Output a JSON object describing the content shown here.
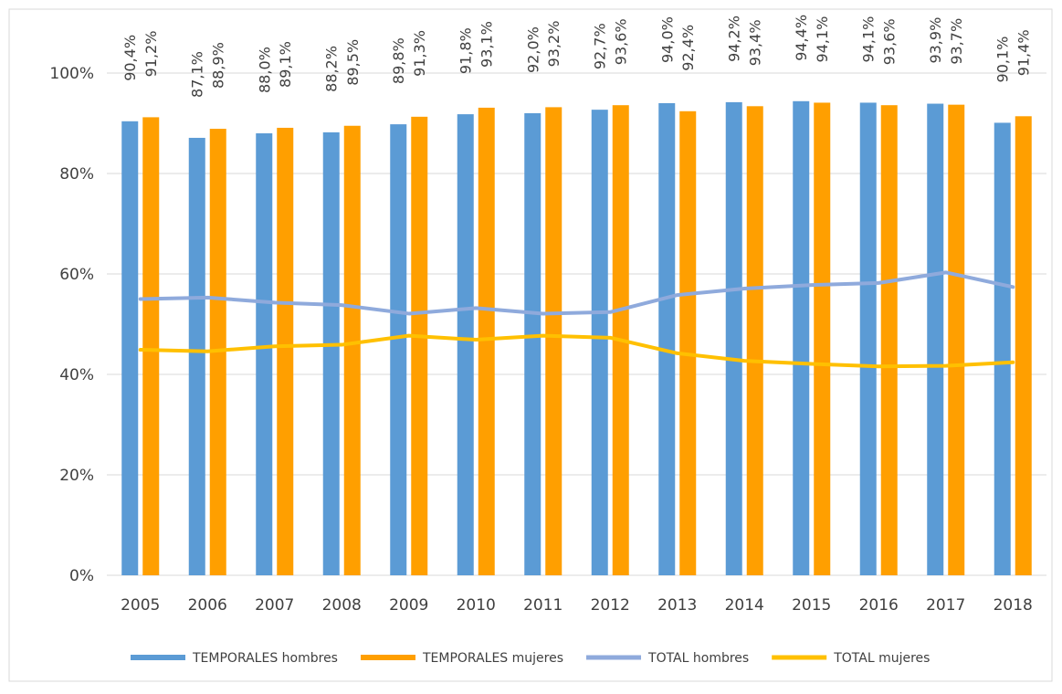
{
  "chart_data": {
    "type": "bar",
    "categories": [
      "2005",
      "2006",
      "2007",
      "2008",
      "2009",
      "2010",
      "2011",
      "2012",
      "2013",
      "2014",
      "2015",
      "2016",
      "2017",
      "2018"
    ],
    "series": [
      {
        "name": "TEMPORALES hombres",
        "type": "bar",
        "color": "#5b9bd5",
        "values": [
          90.4,
          87.1,
          88.0,
          88.2,
          89.8,
          91.8,
          92.0,
          92.7,
          94.0,
          94.2,
          94.4,
          94.1,
          93.9,
          90.1
        ],
        "value_labels": [
          "90,4%",
          "87,1%",
          "88,0%",
          "88,2%",
          "89,8%",
          "91,8%",
          "92,0%",
          "92,7%",
          "94,0%",
          "94,2%",
          "94,4%",
          "94,1%",
          "93,9%",
          "90,1%"
        ]
      },
      {
        "name": "TEMPORALES mujeres",
        "type": "bar",
        "color": "#ff9f00",
        "values": [
          91.2,
          88.9,
          89.1,
          89.5,
          91.3,
          93.1,
          93.2,
          93.6,
          92.4,
          93.4,
          94.1,
          93.6,
          93.7,
          91.4
        ],
        "value_labels": [
          "91,2%",
          "88,9%",
          "89,1%",
          "89,5%",
          "91,3%",
          "93,1%",
          "93,2%",
          "93,6%",
          "92,4%",
          "93,4%",
          "94,1%",
          "93,6%",
          "93,7%",
          "91,4%"
        ]
      },
      {
        "name": "TOTAL hombres",
        "type": "line",
        "color": "#8faadc",
        "values": [
          55.0,
          55.3,
          54.3,
          53.8,
          52.1,
          53.2,
          52.1,
          52.4,
          55.8,
          57.1,
          57.8,
          58.2,
          60.3,
          57.4
        ]
      },
      {
        "name": "TOTAL mujeres",
        "type": "line",
        "color": "#ffc000",
        "values": [
          44.9,
          44.6,
          45.6,
          45.9,
          47.7,
          46.9,
          47.7,
          47.3,
          44.2,
          42.7,
          42.1,
          41.6,
          41.7,
          42.4
        ]
      }
    ],
    "ylim": [
      0,
      100
    ],
    "yticks": [
      {
        "value": 0,
        "label": "0%"
      },
      {
        "value": 20,
        "label": "20%"
      },
      {
        "value": 40,
        "label": "40%"
      },
      {
        "value": 60,
        "label": "60%"
      },
      {
        "value": 80,
        "label": "80%"
      },
      {
        "value": 100,
        "label": "100%"
      }
    ],
    "grid": true,
    "legend": "bottom"
  }
}
